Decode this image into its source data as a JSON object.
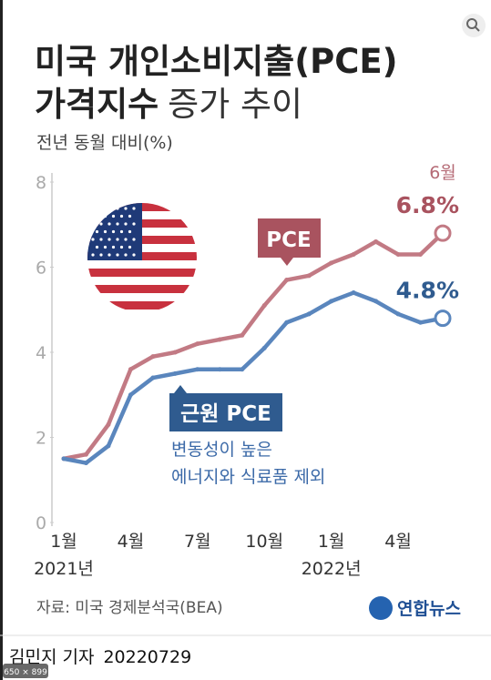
{
  "title": "미국 개인소비지출(PCE)",
  "title_bold": "가격지수",
  "title_light": "증가 추이",
  "badge": "650 × 899",
  "chart_data": {
    "type": "line",
    "subtitle": "전년 동월 대비(%)",
    "categories": [
      "1월",
      null,
      null,
      "4월",
      null,
      null,
      "7월",
      null,
      null,
      "10월",
      null,
      null,
      "1월",
      null,
      null,
      "4월",
      null,
      null
    ],
    "year_labels": [
      "2021년",
      null,
      null,
      null,
      null,
      null,
      null,
      null,
      null,
      null,
      null,
      null,
      "2022년",
      null,
      null,
      null,
      null,
      null
    ],
    "series": [
      {
        "name": "PCE",
        "color": "#c27a84",
        "values": [
          1.5,
          1.6,
          2.3,
          3.6,
          3.9,
          4.0,
          4.2,
          4.3,
          4.4,
          5.1,
          5.7,
          5.8,
          6.1,
          6.3,
          6.6,
          6.3,
          6.3,
          6.8
        ],
        "value_labels": [
          null,
          null,
          null,
          null,
          null,
          null,
          null,
          null,
          null,
          null,
          null,
          null,
          null,
          null,
          null,
          null,
          null,
          "6.8%"
        ]
      },
      {
        "name": "근원 PCE",
        "color": "#5a86bd",
        "values": [
          1.5,
          1.4,
          1.8,
          3.0,
          3.4,
          3.5,
          3.6,
          3.6,
          3.6,
          4.1,
          4.7,
          4.9,
          5.2,
          5.4,
          5.2,
          4.9,
          4.7,
          4.8
        ],
        "value_labels": [
          null,
          null,
          null,
          null,
          null,
          null,
          null,
          null,
          null,
          null,
          null,
          null,
          null,
          null,
          null,
          null,
          null,
          "4.8%"
        ]
      }
    ],
    "ylim": [
      0,
      8
    ],
    "yticks": [
      0,
      2,
      4,
      6,
      8
    ],
    "grid": false,
    "annotations": {
      "last_month": "6월",
      "core_note_1": "변동성이 높은",
      "core_note_2": "에너지와 식료품 제외"
    },
    "source": "자료: 미국 경제분석국(BEA)",
    "logo": "연합뉴스",
    "byline": "김민지 기자",
    "date": "20220729"
  }
}
